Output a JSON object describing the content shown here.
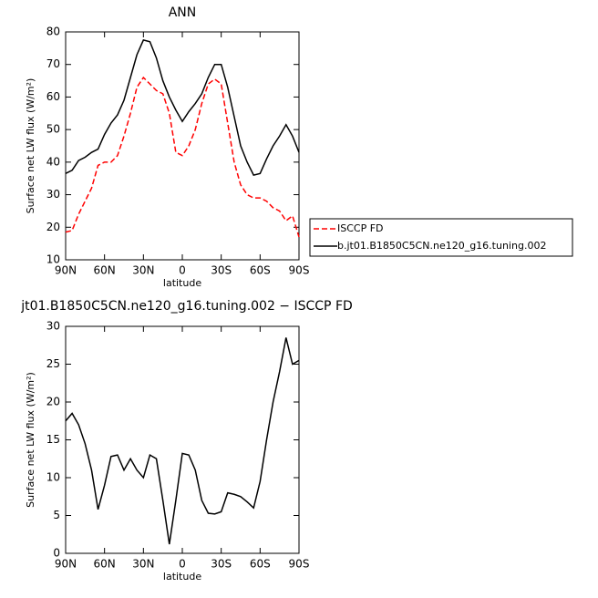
{
  "chart_data": [
    {
      "type": "line",
      "title": "ANN",
      "x_label": "latitude",
      "y_label": "Surface net LW flux (W/m²)",
      "x": [
        90,
        85,
        80,
        75,
        70,
        65,
        60,
        55,
        50,
        45,
        40,
        35,
        30,
        25,
        20,
        15,
        10,
        5,
        0,
        -5,
        -10,
        -15,
        -20,
        -25,
        -30,
        -35,
        -40,
        -45,
        -50,
        -55,
        -60,
        -65,
        -70,
        -75,
        -80,
        -85,
        -90
      ],
      "series": [
        {
          "name": "ISCCP FD",
          "color": "#ff0000",
          "line_style": "dashed",
          "values": [
            18.5,
            19,
            24,
            28,
            32,
            39,
            40,
            40,
            42,
            48,
            55,
            63,
            66,
            64,
            62,
            61,
            55,
            43,
            42,
            45,
            50,
            58,
            64,
            65.5,
            64,
            52,
            40,
            33,
            30,
            29,
            29,
            28,
            26,
            25,
            22,
            23.5,
            17
          ]
        },
        {
          "name": "b.jt01.B1850C5CN.ne120_g16.tuning.002",
          "color": "#000000",
          "line_style": "solid",
          "values": [
            36.5,
            37.5,
            40.5,
            41.5,
            43,
            44,
            48.5,
            52,
            54.5,
            59,
            66,
            73,
            77.5,
            77,
            72,
            65,
            60,
            56,
            52.5,
            55.5,
            58,
            61,
            66,
            70,
            70,
            63,
            54,
            45,
            40,
            36,
            36.5,
            41,
            45,
            48,
            51.5,
            48,
            43
          ]
        }
      ],
      "xlim": [
        90,
        -90
      ],
      "xticks": [
        {
          "value": 90,
          "label": "90N"
        },
        {
          "value": 60,
          "label": "60N"
        },
        {
          "value": 30,
          "label": "30N"
        },
        0,
        {
          "value": -30,
          "label": "30S"
        },
        {
          "value": -60,
          "label": "60S"
        },
        {
          "value": -90,
          "label": "90S"
        }
      ],
      "ylim": [
        10,
        80
      ],
      "yticks": [
        10,
        20,
        30,
        40,
        50,
        60,
        70,
        80
      ],
      "legend": "right"
    },
    {
      "type": "line",
      "title": "jt01.B1850C5CN.ne120_g16.tuning.002 − ISCCP FD",
      "x_label": "latitude",
      "y_label": "Surface net LW flux (W/m²)",
      "x": [
        90,
        85,
        80,
        75,
        70,
        65,
        60,
        55,
        50,
        45,
        40,
        35,
        30,
        25,
        20,
        15,
        10,
        5,
        0,
        -5,
        -10,
        -15,
        -20,
        -25,
        -30,
        -35,
        -40,
        -45,
        -50,
        -55,
        -60,
        -65,
        -70,
        -75,
        -80,
        -85,
        -90
      ],
      "series": [
        {
          "color": "#000000",
          "line_style": "solid",
          "values": [
            17.5,
            18.5,
            17,
            14.5,
            11,
            5.8,
            9,
            12.8,
            13,
            11,
            12.5,
            11,
            10,
            13,
            12.5,
            7,
            1.2,
            7,
            13.2,
            13,
            11,
            7,
            5.3,
            5.2,
            5.5,
            8,
            7.8,
            7.5,
            6.8,
            6,
            9.5,
            15,
            20,
            24,
            28.5,
            25,
            25.5
          ]
        }
      ],
      "xlim": [
        90,
        -90
      ],
      "xticks": [
        {
          "value": 90,
          "label": "90N"
        },
        {
          "value": 60,
          "label": "60N"
        },
        {
          "value": 30,
          "label": "30N"
        },
        0,
        {
          "value": -30,
          "label": "30S"
        },
        {
          "value": -60,
          "label": "60S"
        },
        {
          "value": -90,
          "label": "90S"
        }
      ],
      "ylim": [
        0,
        30
      ],
      "yticks": [
        0,
        5,
        10,
        15,
        20,
        25,
        30
      ]
    }
  ]
}
